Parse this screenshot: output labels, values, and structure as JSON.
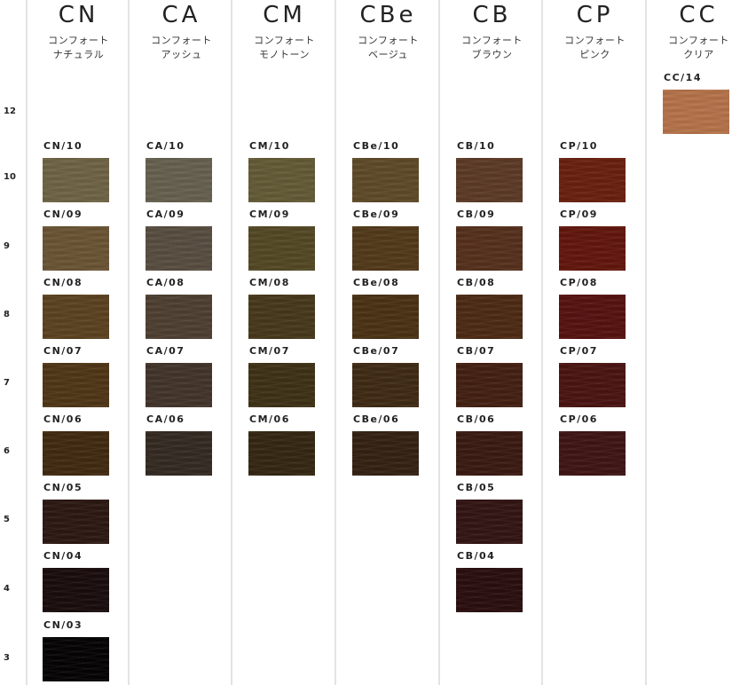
{
  "levels": [
    "12",
    "10",
    "9",
    "8",
    "7",
    "6",
    "5",
    "4",
    "3"
  ],
  "columns": [
    {
      "code": "CN",
      "name": "コンフォート\nナチュラル",
      "swatches": [
        {
          "label": "CN/10",
          "level": "10",
          "color": "#6e6344"
        },
        {
          "label": "CN/09",
          "level": "9",
          "color": "#6a5434"
        },
        {
          "label": "CN/08",
          "level": "8",
          "color": "#5b4220"
        },
        {
          "label": "CN/07",
          "level": "7",
          "color": "#4f3616"
        },
        {
          "label": "CN/06",
          "level": "6",
          "color": "#412a10"
        },
        {
          "label": "CN/05",
          "level": "5",
          "color": "#2c1812"
        },
        {
          "label": "CN/04",
          "level": "4",
          "color": "#1a0c0c"
        },
        {
          "label": "CN/03",
          "level": "3",
          "color": "#050303"
        }
      ]
    },
    {
      "code": "CA",
      "name": "コンフォート\nアッシュ",
      "swatches": [
        {
          "label": "CA/10",
          "level": "10",
          "color": "#66604f"
        },
        {
          "label": "CA/09",
          "level": "9",
          "color": "#584d40"
        },
        {
          "label": "CA/08",
          "level": "8",
          "color": "#4e3f31"
        },
        {
          "label": "CA/07",
          "level": "7",
          "color": "#42342a"
        },
        {
          "label": "CA/06",
          "level": "6",
          "color": "#342a22"
        }
      ]
    },
    {
      "code": "CM",
      "name": "コンフォート\nモノトーン",
      "swatches": [
        {
          "label": "CM/10",
          "level": "10",
          "color": "#635a36"
        },
        {
          "label": "CM/09",
          "level": "9",
          "color": "#534824"
        },
        {
          "label": "CM/08",
          "level": "8",
          "color": "#47381a"
        },
        {
          "label": "CM/07",
          "level": "7",
          "color": "#3e3116"
        },
        {
          "label": "CM/06",
          "level": "6",
          "color": "#342712"
        }
      ]
    },
    {
      "code": "CBe",
      "name": "コンフォート\nベージュ",
      "swatches": [
        {
          "label": "CBe/10",
          "level": "10",
          "color": "#5e4a28"
        },
        {
          "label": "CBe/09",
          "level": "9",
          "color": "#52391a"
        },
        {
          "label": "CBe/08",
          "level": "8",
          "color": "#4a3214"
        },
        {
          "label": "CBe/07",
          "level": "7",
          "color": "#3f2a14"
        },
        {
          "label": "CBe/06",
          "level": "6",
          "color": "#342212"
        }
      ]
    },
    {
      "code": "CB",
      "name": "コンフォート\nブラウン",
      "swatches": [
        {
          "label": "CB/10",
          "level": "10",
          "color": "#5c3a26"
        },
        {
          "label": "CB/09",
          "level": "9",
          "color": "#55301c"
        },
        {
          "label": "CB/08",
          "level": "8",
          "color": "#4d2a14"
        },
        {
          "label": "CB/07",
          "level": "7",
          "color": "#432012"
        },
        {
          "label": "CB/06",
          "level": "6",
          "color": "#3a1a12"
        },
        {
          "label": "CB/05",
          "level": "5",
          "color": "#331414"
        },
        {
          "label": "CB/04",
          "level": "4",
          "color": "#2a0e0e"
        }
      ]
    },
    {
      "code": "CP",
      "name": "コンフォート\nピンク",
      "swatches": [
        {
          "label": "CP/10",
          "level": "10",
          "color": "#6a200e"
        },
        {
          "label": "CP/09",
          "level": "9",
          "color": "#62160c"
        },
        {
          "label": "CP/08",
          "level": "8",
          "color": "#561210"
        },
        {
          "label": "CP/07",
          "level": "7",
          "color": "#4a1412"
        },
        {
          "label": "CP/06",
          "level": "6",
          "color": "#401414"
        }
      ]
    },
    {
      "code": "CC",
      "name": "コンフォート\nクリア",
      "swatches": [
        {
          "label": "CC/14",
          "level": "12",
          "color": "#b5734a"
        }
      ]
    }
  ]
}
